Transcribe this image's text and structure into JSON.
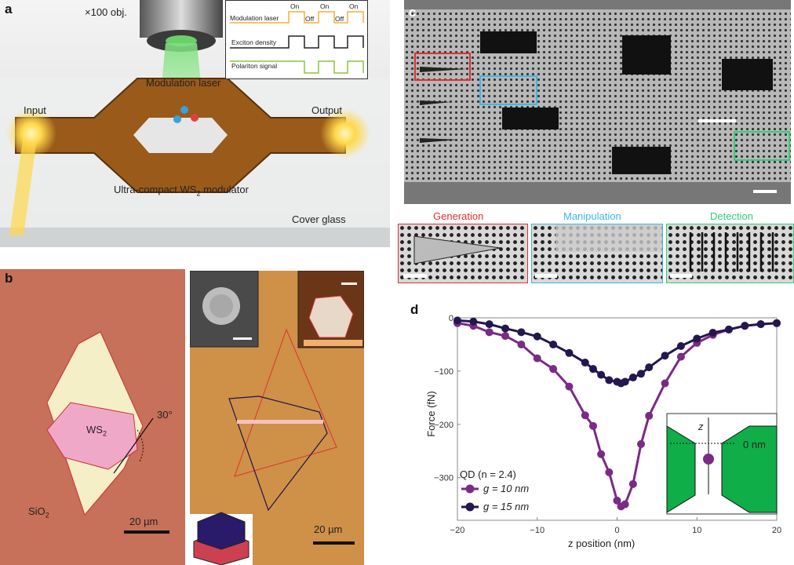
{
  "panels": {
    "a": "a",
    "b": "b",
    "c": "c",
    "d": "d"
  },
  "panel_a": {
    "objective": "×100 obj.",
    "modulation_laser": "Modulation laser",
    "input": "Input",
    "output": "Output",
    "modulator": "Ultra-compact WS",
    "modulator_sub": "2",
    "modulator_end": " modulator",
    "cover_glass": "Cover glass",
    "inset": {
      "rows": [
        "Modulation laser",
        "Exciton density",
        "Polariton signal"
      ],
      "on": "On",
      "off": "Off",
      "colors": [
        "#f2b13c",
        "#222222",
        "#8cc63f"
      ]
    }
  },
  "panel_b": {
    "ws2": "WS",
    "ws2_sub": "2",
    "sio2": "SiO",
    "sio2_sub": "2",
    "angle": "30°",
    "scale_left": "20 µm",
    "scale_right": "20 µm"
  },
  "panel_c": {
    "sections": [
      {
        "label": "Generation",
        "color": "#e0302f"
      },
      {
        "label": "Manipulation",
        "color": "#3fb6e6"
      },
      {
        "label": "Detection",
        "color": "#2fcf79"
      }
    ]
  },
  "chart_data": {
    "type": "line",
    "title": "",
    "xlabel": "z position (nm)",
    "ylabel": "Force (fN)",
    "xlim": [
      -20,
      20
    ],
    "ylim": [
      -380,
      0
    ],
    "xticks": [
      -20,
      -10,
      0,
      10,
      20
    ],
    "yticks": [
      0,
      -100,
      -200,
      -300
    ],
    "legend_title": "QD (n = 2.4)",
    "legend_position": "bottom-left",
    "inset_label_z": "z",
    "inset_label_zero": "0 nm",
    "series": [
      {
        "name": "g = 10 nm",
        "color": "#7b2a86",
        "x": [
          -20,
          -18,
          -16,
          -14,
          -12,
          -10,
          -8,
          -6,
          -4,
          -3,
          -2,
          -1,
          0,
          0.5,
          1,
          2,
          3,
          4,
          6,
          8,
          10,
          12,
          14,
          16,
          18,
          20
        ],
        "y": [
          -10,
          -15,
          -27,
          -34,
          -50,
          -76,
          -96,
          -129,
          -183,
          -203,
          -256,
          -290,
          -343,
          -354,
          -350,
          -312,
          -237,
          -184,
          -123,
          -73,
          -47,
          -32,
          -22,
          -15,
          -12,
          -10
        ]
      },
      {
        "name": "g = 15 nm",
        "color": "#24174f",
        "x": [
          -20,
          -18,
          -16,
          -14,
          -12,
          -10,
          -8,
          -6,
          -4,
          -3,
          -2,
          -1,
          0,
          0.5,
          1,
          2,
          3,
          4,
          6,
          8,
          10,
          12,
          14,
          16,
          18,
          20
        ],
        "y": [
          -5,
          -7,
          -12,
          -20,
          -27,
          -35,
          -50,
          -66,
          -84,
          -96,
          -107,
          -117,
          -120,
          -123,
          -120,
          -112,
          -105,
          -93,
          -71,
          -53,
          -39,
          -28,
          -22,
          -15,
          -12,
          -10
        ]
      }
    ]
  }
}
